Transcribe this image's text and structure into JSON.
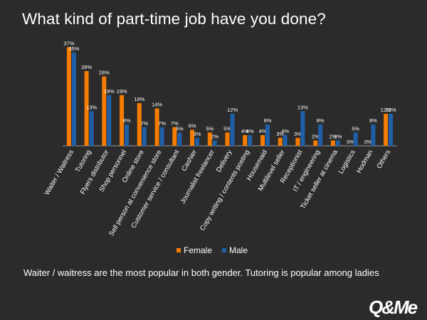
{
  "title": "What kind of part-time job have you done?",
  "caption": "Waiter / waitress are the most popular in both gender. Tutoring is popular among ladies",
  "logo": "Q&Me",
  "colors": {
    "female": "#f57c00",
    "male": "#1f5fa8",
    "background": "#2b2b2b",
    "text": "#ffffff"
  },
  "chart_data": {
    "type": "bar",
    "categories": [
      "Waiter / Waitress",
      "Tutoring",
      "Flyers distributor",
      "Shop personnel",
      "Online store",
      "Sell person at convenience store",
      "Customer service / consultant",
      "Cashier",
      "Journalist freelancer",
      "Delivery",
      "Copy writing / contents posting",
      "Housemaid",
      "Multilevel seller",
      "Receptionist",
      "IT / engineering",
      "Ticket seller at cinema",
      "Logistics",
      "Hodman",
      "Others"
    ],
    "series": [
      {
        "name": "Female",
        "values": [
          37,
          28,
          26,
          19,
          16,
          14,
          7,
          6,
          5,
          5,
          4,
          4,
          3,
          3,
          2,
          2,
          0,
          0,
          12
        ]
      },
      {
        "name": "Male",
        "values": [
          35,
          13,
          19,
          8,
          7,
          7,
          5,
          3,
          2,
          12,
          4,
          8,
          4,
          13,
          8,
          2,
          5,
          8,
          12
        ]
      }
    ],
    "value_suffix": "%",
    "legend_position": "bottom",
    "grid": false,
    "ylim": [
      0,
      40
    ]
  }
}
